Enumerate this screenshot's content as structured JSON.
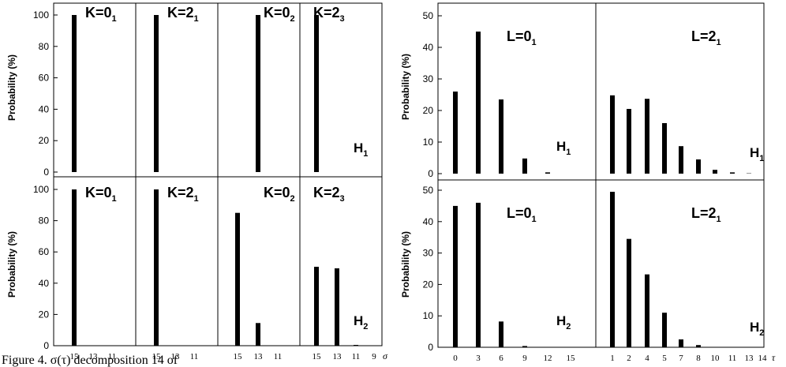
{
  "caption": "Figure 4.  σ(τ) decomposition   14 of",
  "chart_data": [
    {
      "type": "bar",
      "title": "",
      "ylabel": "Probability (%)",
      "ylim": [
        0,
        100
      ],
      "yticks": [
        0,
        20,
        40,
        60,
        80,
        100
      ],
      "x_axis_symbol": "σ",
      "x_categories": [
        "15",
        "13",
        "11",
        "9"
      ],
      "rows": [
        {
          "label": "H",
          "label_sub": "1",
          "panels": [
            {
              "label": "K=0",
              "label_sub": "1",
              "categories": [
                "15",
                "13",
                "11"
              ],
              "values": [
                100,
                0,
                0
              ]
            },
            {
              "label": "K=2",
              "label_sub": "1",
              "categories": [
                "15",
                "13",
                "11"
              ],
              "values": [
                100,
                0,
                0
              ]
            },
            {
              "label": "K=0",
              "label_sub": "2",
              "categories": [
                "15",
                "13",
                "11"
              ],
              "values": [
                0,
                100,
                0
              ]
            },
            {
              "label": "K=2",
              "label_sub": "3",
              "categories": [
                "15",
                "13",
                "11",
                "9"
              ],
              "values": [
                100,
                0,
                0,
                0
              ]
            }
          ]
        },
        {
          "label": "H",
          "label_sub": "2",
          "panels": [
            {
              "label": "K=0",
              "label_sub": "1",
              "categories": [
                "15",
                "13",
                "11"
              ],
              "values": [
                100,
                0,
                0
              ]
            },
            {
              "label": "K=2",
              "label_sub": "1",
              "categories": [
                "15",
                "13",
                "11"
              ],
              "values": [
                100,
                0,
                0
              ]
            },
            {
              "label": "K=0",
              "label_sub": "2",
              "categories": [
                "15",
                "13",
                "11"
              ],
              "values": [
                85,
                14.5,
                0
              ]
            },
            {
              "label": "K=2",
              "label_sub": "3",
              "categories": [
                "15",
                "13",
                "11",
                "9"
              ],
              "values": [
                50.5,
                49.5,
                0.5,
                0
              ]
            }
          ]
        }
      ]
    },
    {
      "type": "bar",
      "title": "",
      "ylabel": "Probability (%)",
      "ylim": [
        0,
        55
      ],
      "yticks": [
        0,
        10,
        20,
        30,
        40,
        50
      ],
      "x_axis_symbol": "τ",
      "rows": [
        {
          "label": "H",
          "label_sub": "1",
          "panels": [
            {
              "label": "L=0",
              "label_sub": "1",
              "categories": [
                "0",
                "3",
                "6",
                "9",
                "12",
                "15"
              ],
              "values": [
                26,
                45,
                23.5,
                4.8,
                0.4,
                0
              ]
            },
            {
              "label": "L=2",
              "label_sub": "1",
              "categories": [
                "1",
                "2",
                "4",
                "5",
                "7",
                "8",
                "10",
                "11",
                "13",
                "14"
              ],
              "values": [
                24.8,
                20.5,
                23.7,
                16,
                8.7,
                4.5,
                1.2,
                0.4,
                0.1,
                0
              ]
            }
          ]
        },
        {
          "label": "H",
          "label_sub": "2",
          "panels": [
            {
              "label": "L=0",
              "label_sub": "1",
              "categories": [
                "0",
                "3",
                "6",
                "9",
                "12",
                "15"
              ],
              "values": [
                45,
                46,
                8.2,
                0.4,
                0,
                0
              ]
            },
            {
              "label": "L=2",
              "label_sub": "1",
              "categories": [
                "1",
                "2",
                "4",
                "5",
                "7",
                "8",
                "10",
                "11",
                "13",
                "14"
              ],
              "values": [
                49.5,
                34.5,
                23.2,
                11,
                2.5,
                0.7,
                0.1,
                0,
                0,
                0
              ]
            }
          ]
        }
      ]
    }
  ]
}
